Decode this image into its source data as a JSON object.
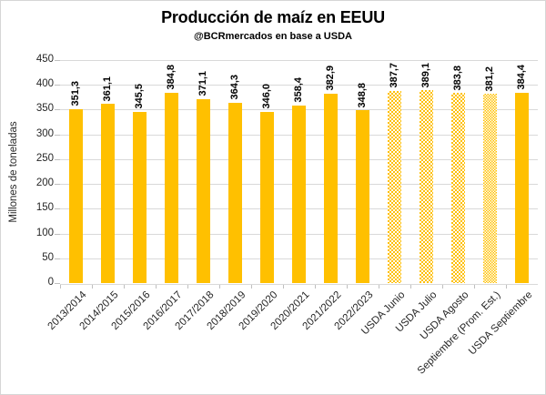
{
  "chart_data": {
    "type": "bar",
    "title": "Producción de maíz en EEUU",
    "subtitle": "@BCRmercados en base a USDA",
    "ylabel": "Millones de toneladas",
    "xlabel": "",
    "ylim": [
      0,
      450
    ],
    "ytick_step": 50,
    "grid": true,
    "legend": false,
    "categories": [
      "2013/2014",
      "2014/2015",
      "2015/2016",
      "2016/2017",
      "2017/2018",
      "2018/2019",
      "2019/2020",
      "2020/2021",
      "2021/2022",
      "2022/2023",
      "USDA Junio",
      "USDA Julio",
      "USDA Agosto",
      "Septiembre (Prom. Est.)",
      "USDA Septiembre"
    ],
    "values": [
      351.3,
      361.1,
      345.5,
      384.8,
      371.1,
      364.3,
      346.0,
      358.4,
      382.9,
      348.8,
      387.7,
      389.1,
      383.8,
      381.2,
      384.4
    ],
    "value_labels": [
      "351,3",
      "361,1",
      "345,5",
      "384,8",
      "371,1",
      "364,3",
      "346,0",
      "358,4",
      "382,9",
      "348,8",
      "387,7",
      "389,1",
      "383,8",
      "381,2",
      "384,4"
    ],
    "bar_styles": [
      "solid",
      "solid",
      "solid",
      "solid",
      "solid",
      "solid",
      "solid",
      "solid",
      "solid",
      "solid",
      "checker",
      "checker",
      "checker",
      "checker-fine",
      "solid"
    ],
    "colors": {
      "bar": "#FFC000",
      "gridline": "#D9D9D9",
      "axis_text": "#262626",
      "value_label": "#000000",
      "frame_border": "#D6D6D6"
    }
  }
}
